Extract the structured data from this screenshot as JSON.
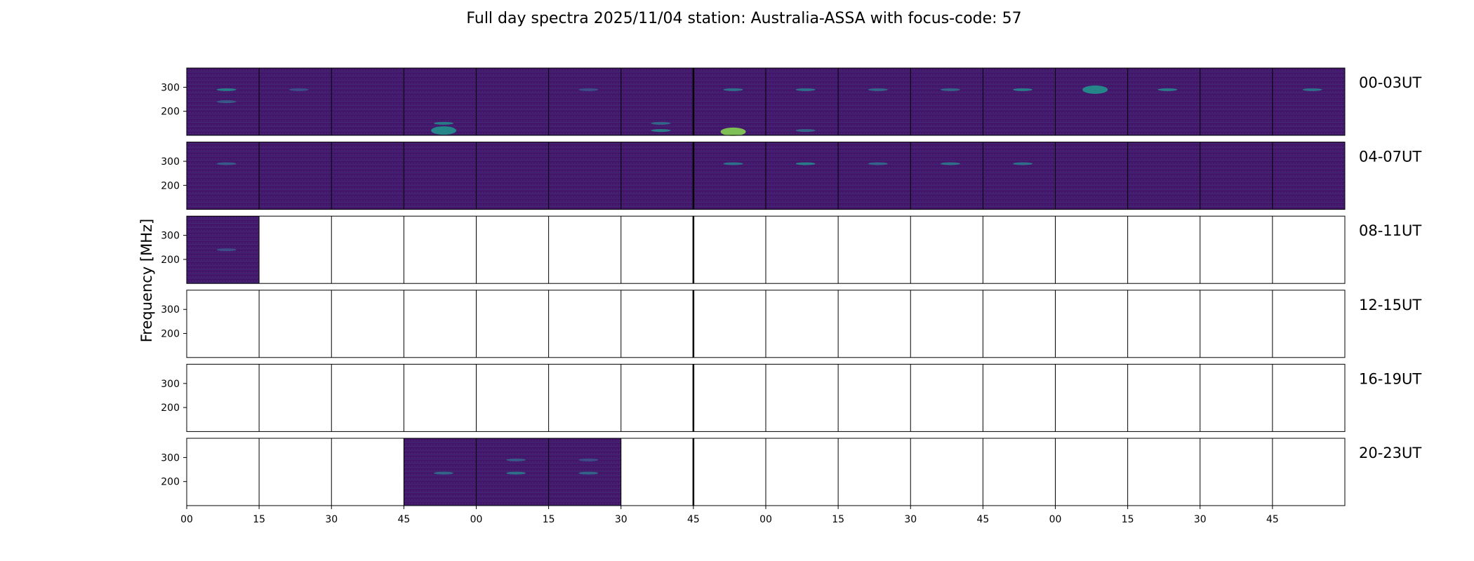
{
  "chart_data": {
    "type": "heatmap",
    "title": "Full day spectra 2025/11/04 station: Australia-ASSA with focus-code: 57",
    "ylabel": "Frequency [MHz]",
    "xlabel": "",
    "ylim": [
      100,
      380
    ],
    "yticks": [
      200,
      300
    ],
    "xtick_labels": [
      "00",
      "15",
      "30",
      "45",
      "00",
      "15",
      "30",
      "45",
      "00",
      "15",
      "30",
      "45",
      "00",
      "15",
      "30",
      "45"
    ],
    "colormap": "viridis",
    "rows": [
      {
        "label": "00-03UT",
        "filled": [
          1,
          1,
          1,
          1,
          1,
          1,
          1,
          1,
          1,
          1,
          1,
          1,
          1,
          1,
          1,
          1
        ],
        "hot": [
          [
            0,
            290,
            0.5
          ],
          [
            0,
            240,
            0.35
          ],
          [
            1,
            290,
            0.3
          ],
          [
            3,
            150,
            0.5
          ],
          [
            3,
            120,
            0.55
          ],
          [
            5,
            290,
            0.3
          ],
          [
            6,
            150,
            0.4
          ],
          [
            6,
            120,
            0.5
          ],
          [
            7,
            290,
            0.45
          ],
          [
            7,
            115,
            0.85
          ],
          [
            8,
            290,
            0.45
          ],
          [
            8,
            120,
            0.4
          ],
          [
            9,
            290,
            0.4
          ],
          [
            10,
            290,
            0.4
          ],
          [
            11,
            290,
            0.5
          ],
          [
            12,
            290,
            0.55
          ],
          [
            13,
            290,
            0.5
          ],
          [
            15,
            290,
            0.45
          ]
        ]
      },
      {
        "label": "04-07UT",
        "filled": [
          1,
          1,
          1,
          1,
          1,
          1,
          1,
          1,
          1,
          1,
          1,
          1,
          1,
          1,
          1,
          1
        ],
        "hot": [
          [
            0,
            290,
            0.35
          ],
          [
            7,
            290,
            0.45
          ],
          [
            8,
            290,
            0.5
          ],
          [
            9,
            290,
            0.4
          ],
          [
            10,
            290,
            0.45
          ],
          [
            11,
            290,
            0.45
          ]
        ]
      },
      {
        "label": "08-11UT",
        "filled": [
          1,
          0,
          0,
          0,
          0,
          0,
          0,
          0,
          0,
          0,
          0,
          0,
          0,
          0,
          0,
          0
        ],
        "hot": [
          [
            0,
            240,
            0.3
          ]
        ]
      },
      {
        "label": "12-15UT",
        "filled": [
          0,
          0,
          0,
          0,
          0,
          0,
          0,
          0,
          0,
          0,
          0,
          0,
          0,
          0,
          0,
          0
        ],
        "hot": []
      },
      {
        "label": "16-19UT",
        "filled": [
          0,
          0,
          0,
          0,
          0,
          0,
          0,
          0,
          0,
          0,
          0,
          0,
          0,
          0,
          0,
          0
        ],
        "hot": []
      },
      {
        "label": "20-23UT",
        "filled": [
          0,
          0,
          0,
          1,
          1,
          1,
          0,
          0,
          0,
          0,
          0,
          0,
          0,
          0,
          0,
          0
        ],
        "hot": [
          [
            3,
            235,
            0.4
          ],
          [
            4,
            235,
            0.45
          ],
          [
            4,
            290,
            0.35
          ],
          [
            5,
            235,
            0.4
          ],
          [
            5,
            290,
            0.3
          ]
        ]
      }
    ]
  }
}
